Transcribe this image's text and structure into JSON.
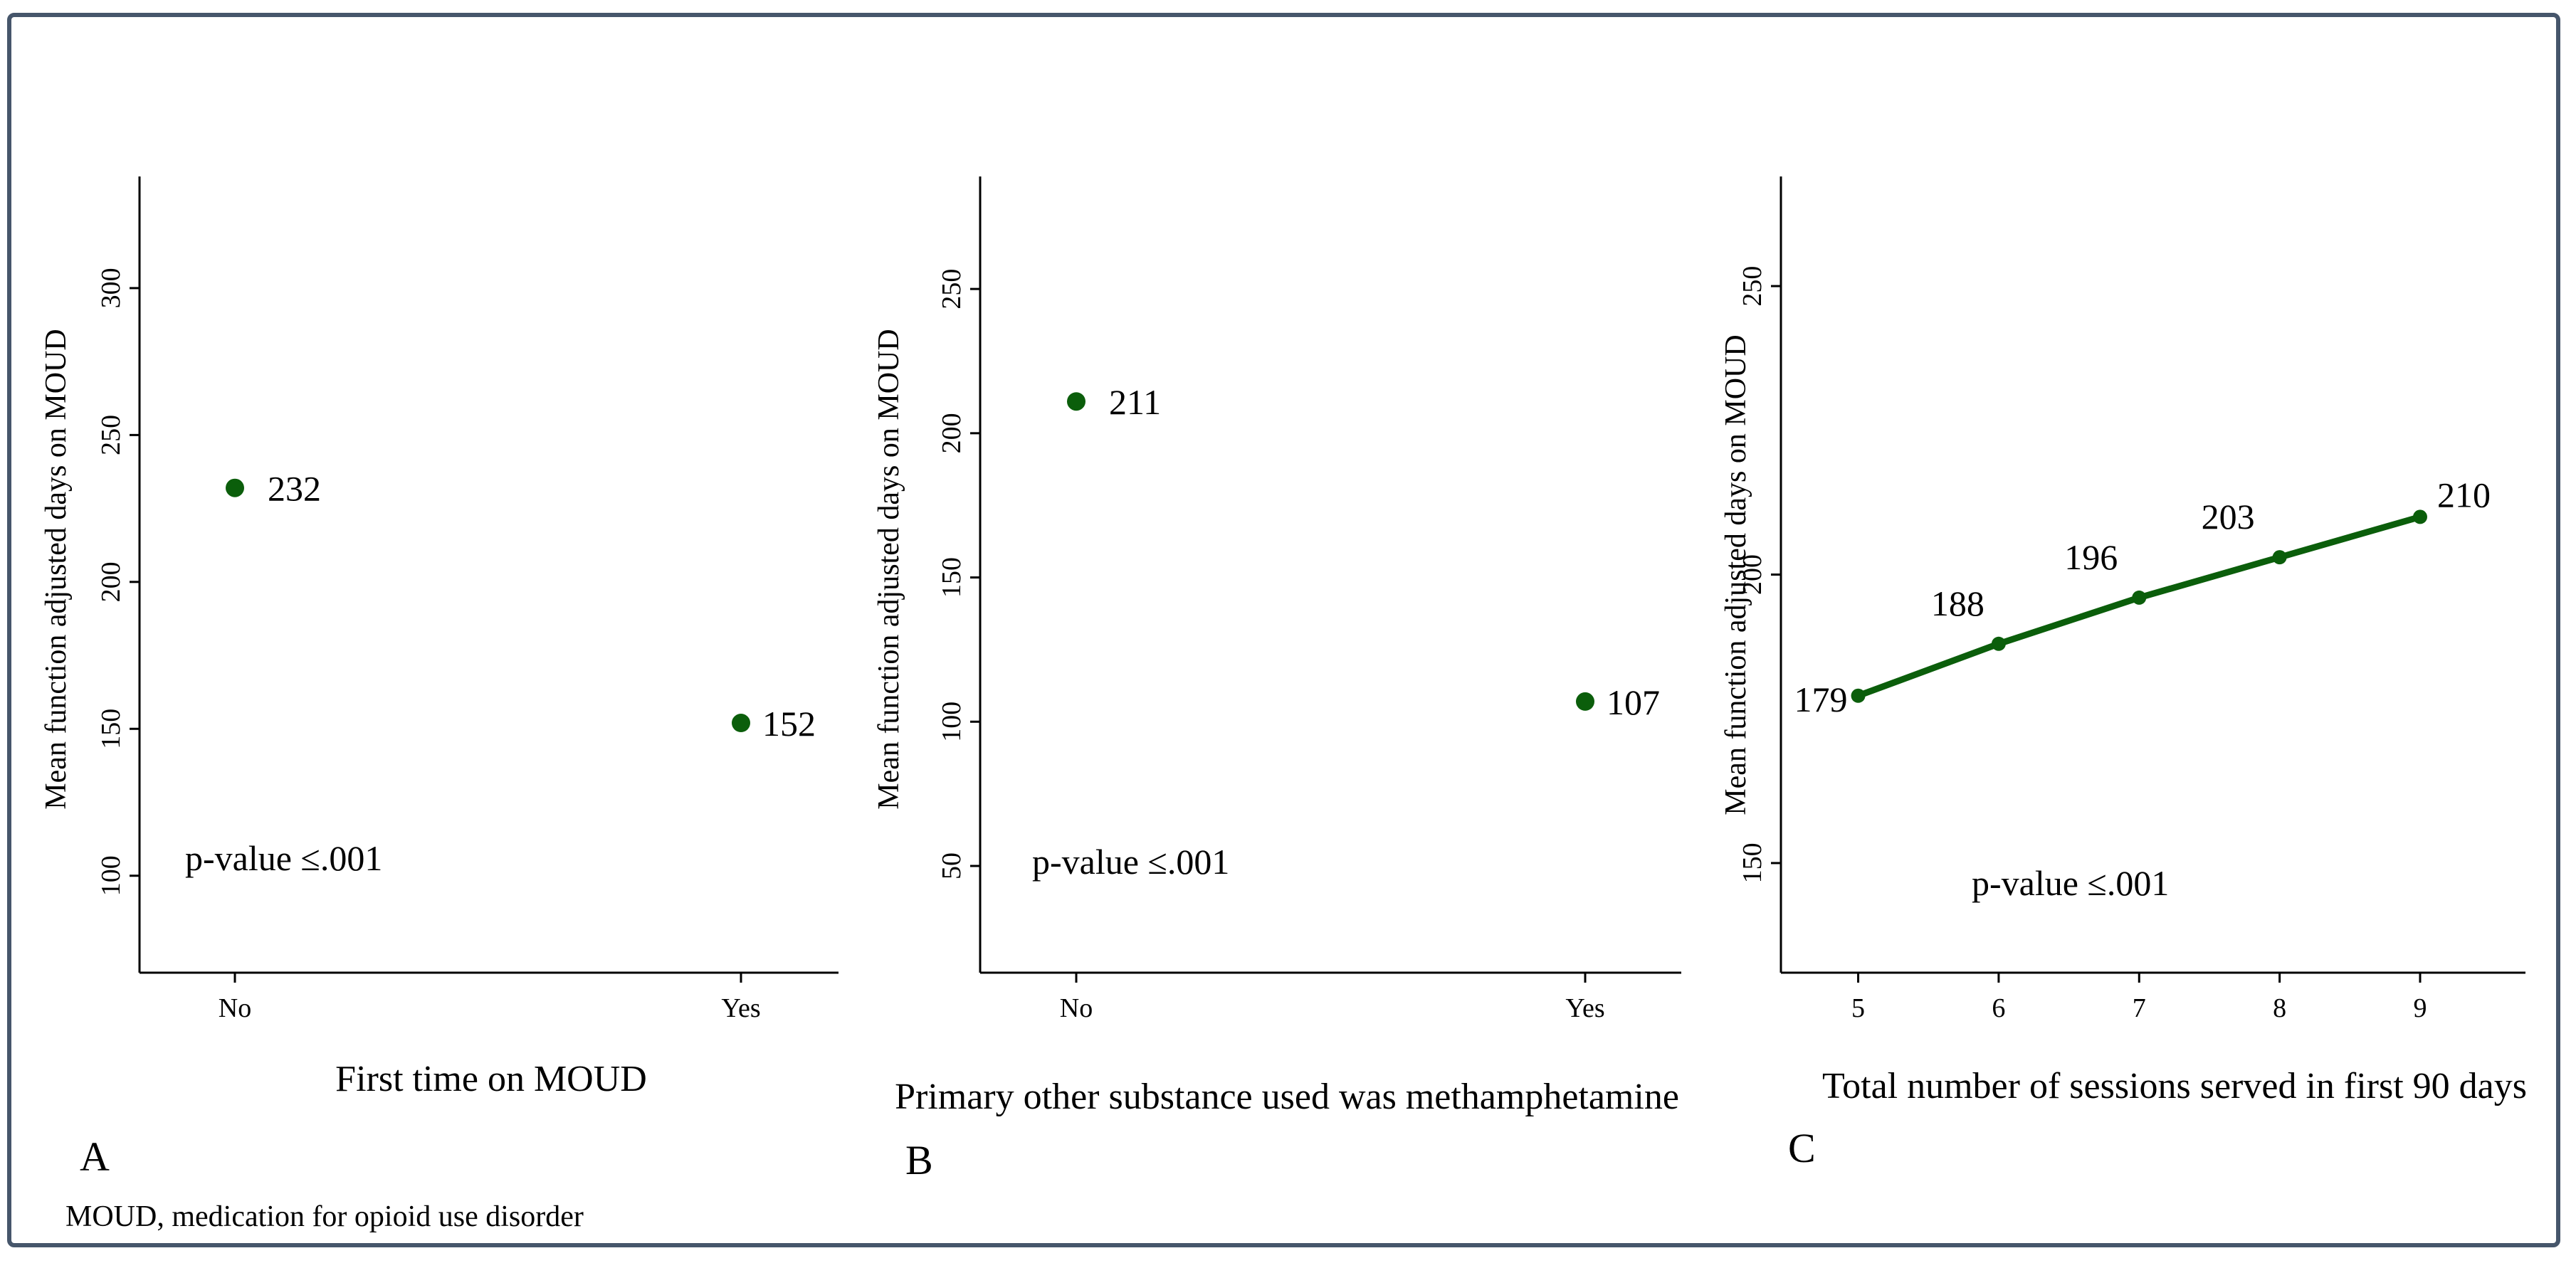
{
  "footnote": "MOUD, medication for opioid use disorder",
  "colors": {
    "marker": "#0b5e0b",
    "axis": "#000000",
    "frame": "#46566b"
  },
  "chart_data": [
    {
      "type": "scatter",
      "panel_label": "A",
      "categories": [
        "No",
        "Yes"
      ],
      "values": [
        232,
        152
      ],
      "data_labels": [
        "232",
        "152"
      ],
      "xlabel": "First time on MOUD",
      "ylabel": "Mean function adjusted days on MOUD",
      "ylim": [
        67,
        338
      ],
      "yticks": [
        100,
        150,
        200,
        250,
        300
      ],
      "annotation": "p-value ≤.001"
    },
    {
      "type": "scatter",
      "panel_label": "B",
      "categories": [
        "No",
        "Yes"
      ],
      "values": [
        211,
        107
      ],
      "data_labels": [
        "211",
        "107"
      ],
      "xlabel": "Primary other substance used was methamphetamine",
      "ylabel": "Mean function adjusted days on MOUD",
      "ylim": [
        13,
        289
      ],
      "yticks": [
        50,
        100,
        150,
        200,
        250
      ],
      "annotation": "p-value ≤.001"
    },
    {
      "type": "line",
      "panel_label": "C",
      "x": [
        5,
        6,
        7,
        8,
        9
      ],
      "values": [
        179,
        188,
        196,
        203,
        210
      ],
      "data_labels": [
        "179",
        "188",
        "196",
        "203",
        "210"
      ],
      "xlabel": "Total number of sessions served in first 90 days",
      "ylabel": "Mean function adjusted days on MOUD",
      "ylim": [
        131,
        269
      ],
      "yticks": [
        150,
        200,
        250
      ],
      "annotation": "p-value ≤.001"
    }
  ]
}
